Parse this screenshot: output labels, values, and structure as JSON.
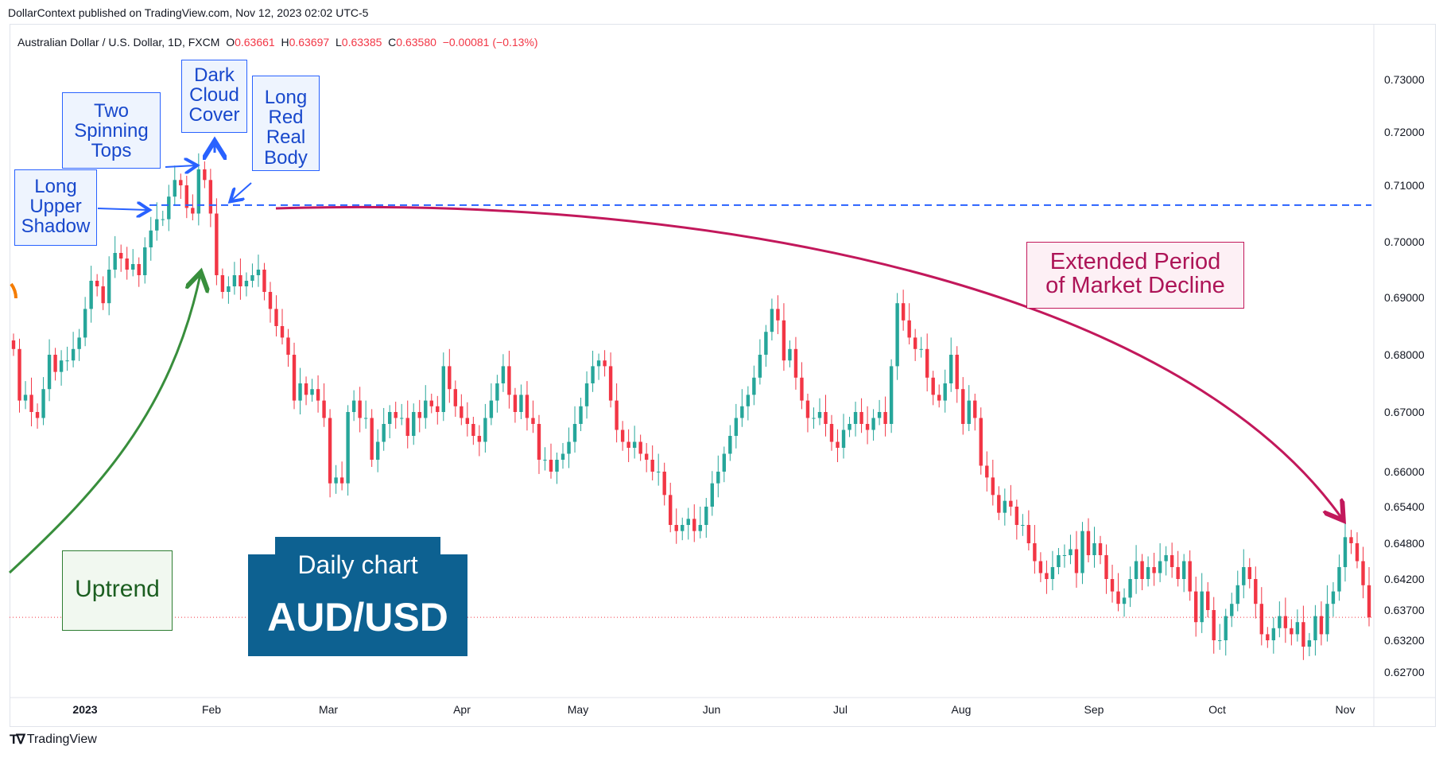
{
  "publisher_line": "DollarContext published on TradingView.com, Nov 12, 2023 02:02 UTC-5",
  "symbol_line": "Australian Dollar / U.S. Dollar, 1D, FXCM",
  "ohlc": {
    "o_label": "O",
    "o_value": "0.63661",
    "h_label": "H",
    "h_value": "0.63697",
    "l_label": "L",
    "l_value": "0.63385",
    "c_label": "C",
    "c_value": "0.63580",
    "change": "−0.00081 (−0.13%)"
  },
  "branding": "TradingView",
  "annotations": {
    "long_upper_shadow": "Long\nUpper\nShadow",
    "two_spinning_tops": "Two\nSpinning\nTops",
    "dark_cloud_cover": "Dark\nCloud\nCover",
    "long_red_real_body": "Long\nRed\nReal\nBody",
    "extended_decline": "Extended Period\nof Market Decline",
    "uptrend": "Uptrend"
  },
  "badge": {
    "subtitle": "Daily chart",
    "symbol": "AUD/USD"
  },
  "colors": {
    "up": "#26a69a",
    "down": "#f23645",
    "resistance": "#2962ff",
    "decline_arrow": "#c2185b",
    "trend_arrow": "#388e3c"
  },
  "chart_data": {
    "type": "candlestick",
    "title": "Australian Dollar / U.S. Dollar, 1D, FXCM",
    "y_ticks": [
      "0.73000",
      "0.72000",
      "0.71000",
      "0.70000",
      "0.69000",
      "0.68000",
      "0.67000",
      "0.66000",
      "0.65400",
      "0.64800",
      "0.64200",
      "0.63700",
      "0.63200",
      "0.62700"
    ],
    "x_ticks": [
      "2023",
      "Feb",
      "Mar",
      "Apr",
      "May",
      "Jun",
      "Jul",
      "Aug",
      "Sep",
      "Oct",
      "Nov"
    ],
    "resistance_level": 0.7065,
    "current_price": 0.6358,
    "x_range": [
      "2022-12-27",
      "2023-11-10"
    ],
    "closes": [
      0.681,
      0.672,
      0.673,
      0.67,
      0.669,
      0.674,
      0.68,
      0.677,
      0.679,
      0.679,
      0.681,
      0.683,
      0.688,
      0.693,
      0.692,
      0.689,
      0.695,
      0.698,
      0.697,
      0.695,
      0.696,
      0.694,
      0.699,
      0.702,
      0.704,
      0.704,
      0.708,
      0.711,
      0.71,
      0.706,
      0.705,
      0.713,
      0.711,
      0.705,
      0.694,
      0.691,
      0.692,
      0.694,
      0.692,
      0.693,
      0.694,
      0.695,
      0.691,
      0.688,
      0.685,
      0.683,
      0.68,
      0.672,
      0.675,
      0.673,
      0.674,
      0.672,
      0.669,
      0.658,
      0.659,
      0.658,
      0.67,
      0.672,
      0.669,
      0.669,
      0.662,
      0.665,
      0.668,
      0.67,
      0.669,
      0.669,
      0.666,
      0.67,
      0.669,
      0.672,
      0.671,
      0.67,
      0.678,
      0.674,
      0.671,
      0.669,
      0.668,
      0.666,
      0.665,
      0.669,
      0.672,
      0.675,
      0.678,
      0.673,
      0.67,
      0.673,
      0.669,
      0.668,
      0.662,
      0.662,
      0.66,
      0.662,
      0.663,
      0.665,
      0.668,
      0.671,
      0.675,
      0.678,
      0.679,
      0.678,
      0.672,
      0.667,
      0.665,
      0.664,
      0.665,
      0.663,
      0.662,
      0.66,
      0.66,
      0.656,
      0.651,
      0.65,
      0.651,
      0.652,
      0.65,
      0.651,
      0.654,
      0.658,
      0.66,
      0.663,
      0.666,
      0.669,
      0.671,
      0.673,
      0.676,
      0.68,
      0.684,
      0.688,
      0.686,
      0.679,
      0.681,
      0.676,
      0.672,
      0.669,
      0.669,
      0.67,
      0.668,
      0.665,
      0.664,
      0.667,
      0.668,
      0.67,
      0.668,
      0.667,
      0.669,
      0.67,
      0.668,
      0.678,
      0.689,
      0.686,
      0.683,
      0.681,
      0.681,
      0.676,
      0.673,
      0.672,
      0.675,
      0.68,
      0.674,
      0.668,
      0.672,
      0.669,
      0.661,
      0.659,
      0.656,
      0.653,
      0.655,
      0.654,
      0.651,
      0.651,
      0.648,
      0.645,
      0.643,
      0.642,
      0.644,
      0.646,
      0.646,
      0.647,
      0.643,
      0.65,
      0.646,
      0.648,
      0.646,
      0.642,
      0.64,
      0.638,
      0.639,
      0.642,
      0.645,
      0.642,
      0.644,
      0.643,
      0.645,
      0.646,
      0.644,
      0.642,
      0.645,
      0.64,
      0.635,
      0.64,
      0.637,
      0.632,
      0.632,
      0.636,
      0.638,
      0.641,
      0.644,
      0.642,
      0.638,
      0.633,
      0.632,
      0.634,
      0.636,
      0.634,
      0.633,
      0.635,
      0.631,
      0.632,
      0.636,
      0.633,
      0.638,
      0.64,
      0.644,
      0.649,
      0.648,
      0.645,
      0.641,
      0.6358
    ]
  }
}
